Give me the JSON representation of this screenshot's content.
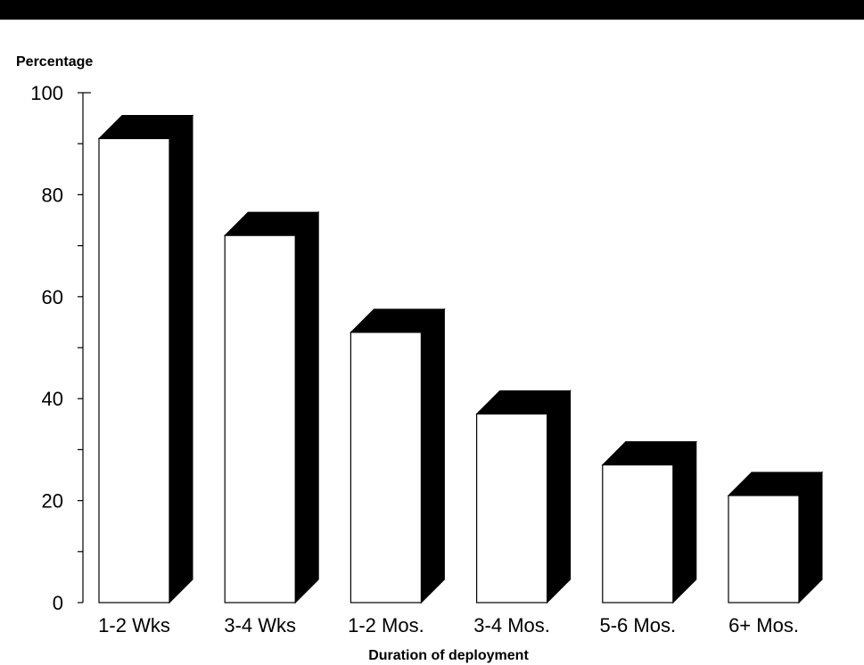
{
  "chart_data": {
    "type": "bar",
    "style": "3d",
    "title": "",
    "ylabel": "Percentage",
    "xlabel": "Duration of deployment",
    "categories": [
      "1-2 Wks",
      "3-4 Wks",
      "1-2 Mos.",
      "3-4 Mos.",
      "5-6 Mos.",
      "6+ Mos."
    ],
    "values": [
      91,
      72,
      53,
      37,
      27,
      21
    ],
    "ylim": [
      0,
      100
    ],
    "yticks": [
      "0",
      "20",
      "40",
      "60",
      "80",
      "100"
    ],
    "grid": false,
    "colors": {
      "bar_face": "#ffffff",
      "bar_shade": "#000000",
      "axis": "#000000"
    }
  }
}
